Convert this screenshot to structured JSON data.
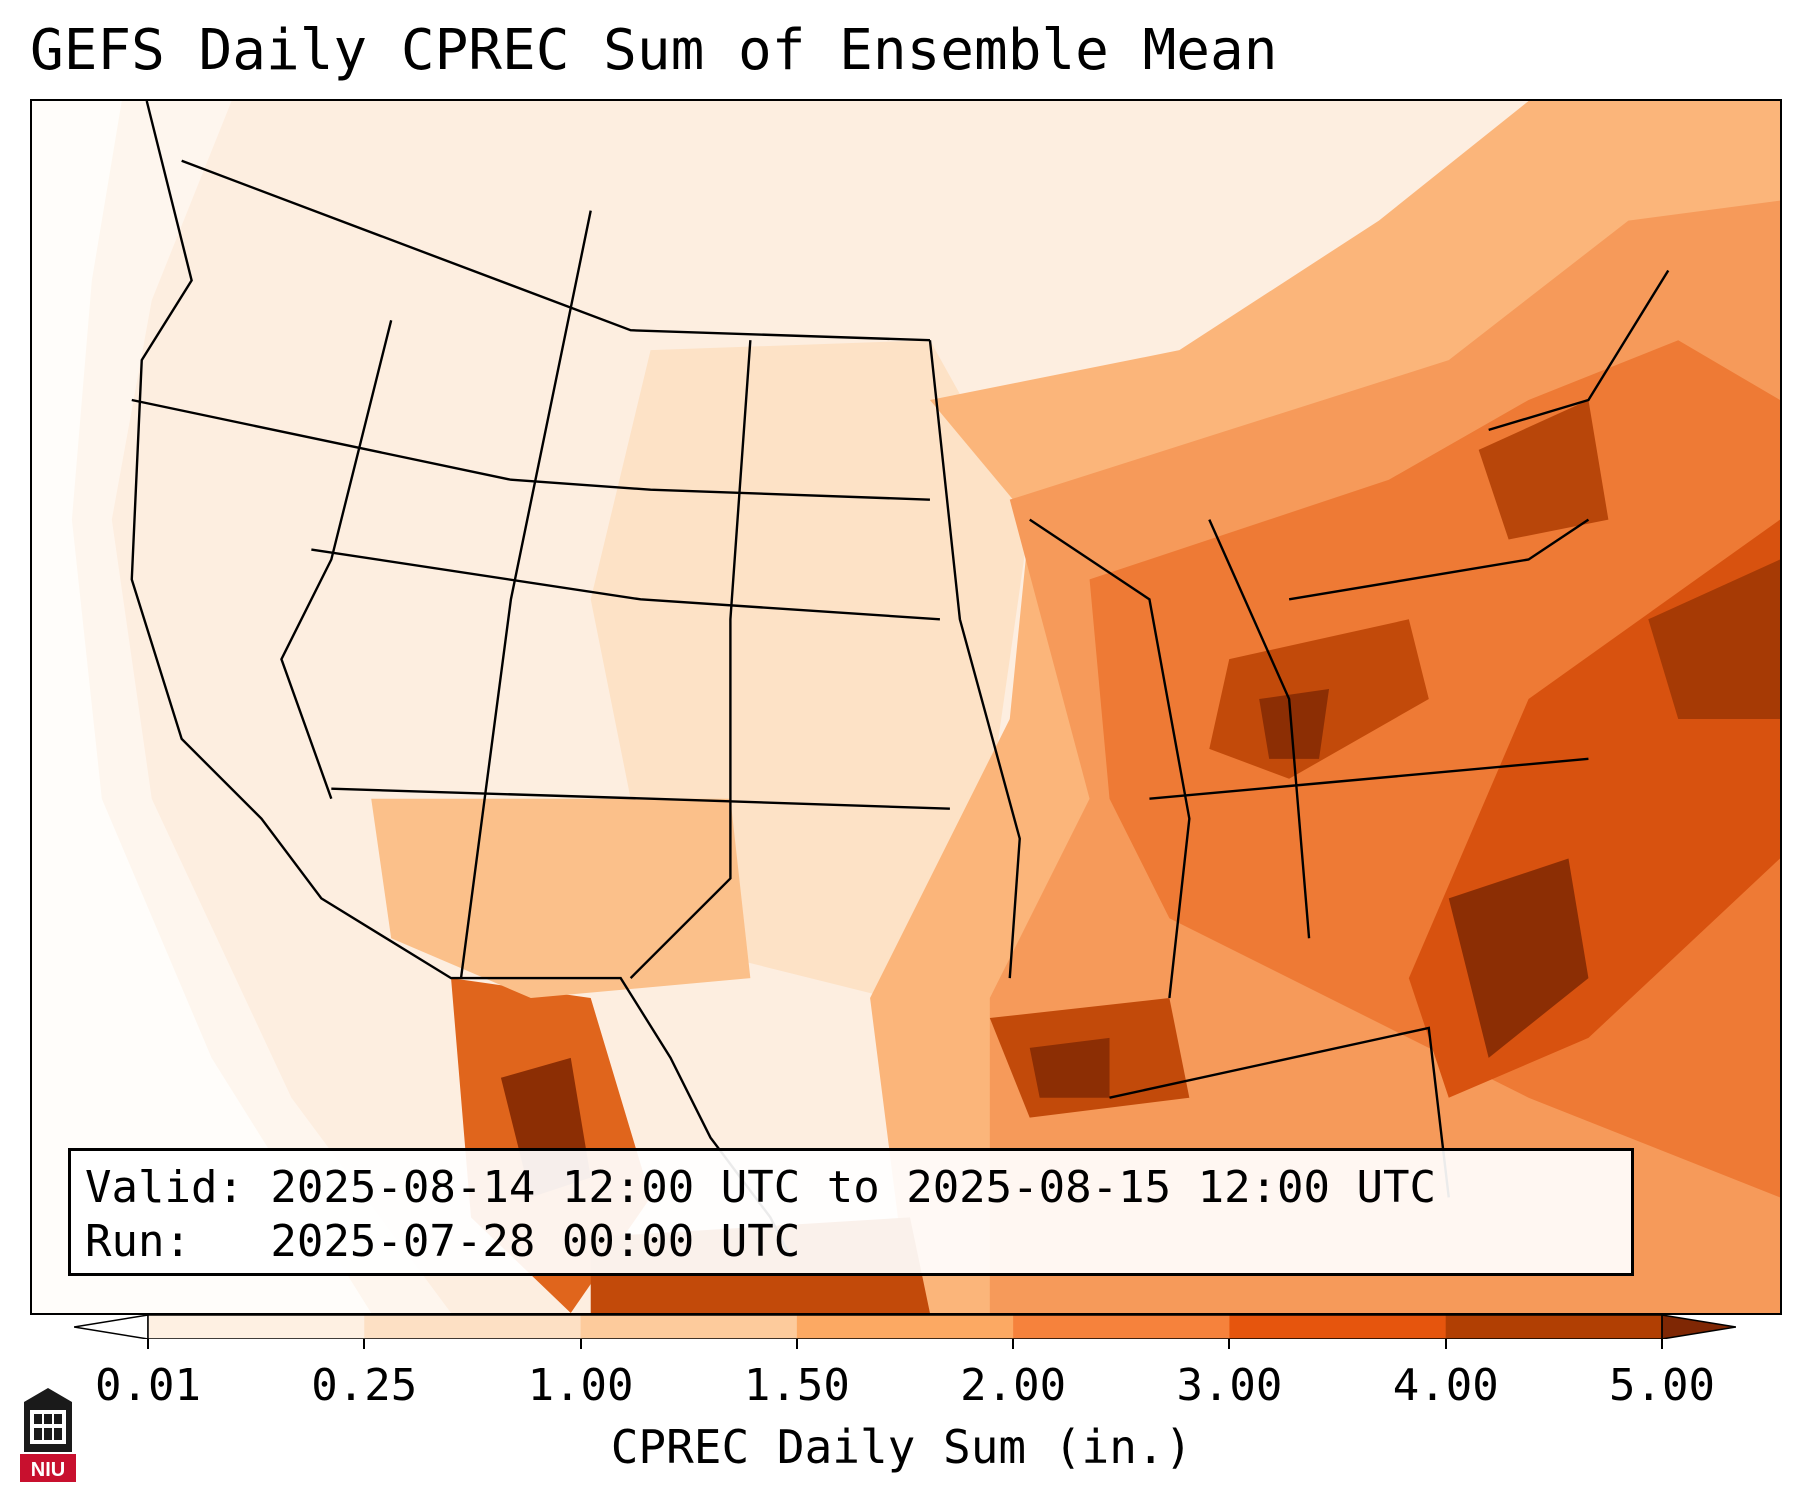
{
  "title": "GEFS Daily CPREC Sum of Ensemble Mean",
  "info": {
    "valid_line": "Valid: 2025-08-14 12:00 UTC to 2025-08-15 12:00 UTC",
    "run_line": "Run:   2025-07-28 00:00 UTC"
  },
  "colorbar": {
    "label": "CPREC Daily Sum (in.)",
    "ticks": [
      "0.01",
      "0.25",
      "1.00",
      "1.50",
      "2.00",
      "3.00",
      "4.00",
      "5.00"
    ],
    "colors": [
      "#fef0e2",
      "#fde0c4",
      "#fdcb9c",
      "#fca963",
      "#f6823c",
      "#e6550d",
      "#b13f03",
      "#7f2704"
    ],
    "under_color": "#ffffff",
    "over_color": "#7f2704"
  },
  "logo": {
    "text": "NIU",
    "color": "#c8102e"
  }
}
